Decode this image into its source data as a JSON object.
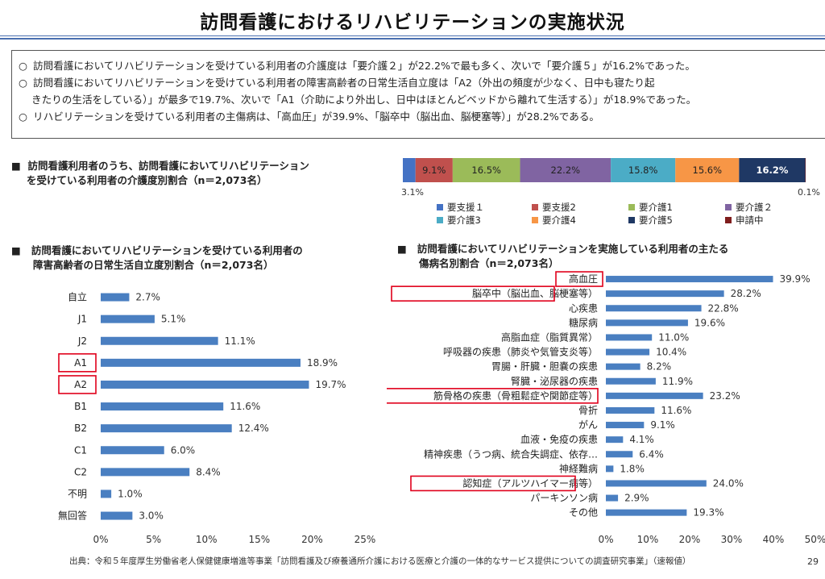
{
  "page": {
    "title": "訪問看護におけるリハビリテーションの実施状況",
    "summary": [
      "訪問看護においてリハビリテーションを受けている利用者の介護度は「要介護２」が22.2%で最も多く、次いで「要介護５」が16.2%であった。",
      "訪問看護においてリハビリテーションを受けている利用者の障害高齢者の日常生活自立度は「A2（外出の頻度が少なく、日中も寝たり起",
      "きたりの生活をしている）」が最多で19.7%、次いで「A1（介助により外出し、日中はほとんどベッドから離れて生活する）」が18.9%であった。",
      "リハビリテーションを受けている利用者の主傷病は、「高血圧」が39.9%、「脳卒中（脳出血、脳梗塞等）」が28.2%である。"
    ],
    "bullet_symbol": "○",
    "section_marker": "■",
    "source": "出典：令和５年度厚生労働省老人保健健康増進等事業「訪問看護及び療養通所介護における医療と介護の一体的なサービス提供についての調査研究事業」（速報値）",
    "page_number": "29"
  },
  "chart_data": [
    {
      "type": "bar",
      "orientation": "horizontal-stacked",
      "title": "訪問看護利用者のうち、訪問看護においてリハビリテーションを受けている利用者の介護度別割合（n＝2,073名）",
      "title_lines": [
        "訪問看護利用者のうち、訪問看護においてリハビリテーション",
        "を受けている利用者の介護度別割合（n＝2,073名）"
      ],
      "series": [
        {
          "name": "要支援１",
          "value": 3.1,
          "label": "3.1%",
          "color": "#4472c4"
        },
        {
          "name": "要支援2",
          "value": 9.1,
          "label": "9.1%",
          "color": "#c0504d"
        },
        {
          "name": "要介護1",
          "value": 16.5,
          "label": "16.5%",
          "color": "#9bbb59"
        },
        {
          "name": "要介護２",
          "value": 22.2,
          "label": "22.2%",
          "color": "#8064a2"
        },
        {
          "name": "要介護3",
          "value": 15.8,
          "label": "15.8%",
          "color": "#4bacc6"
        },
        {
          "name": "要介護4",
          "value": 15.6,
          "label": "15.6%",
          "color": "#f79646"
        },
        {
          "name": "要介護5",
          "value": 16.2,
          "label": "16.2%",
          "color": "#1f3864"
        },
        {
          "name": "申請中",
          "value": 0.1,
          "label": "0.1%",
          "color": "#7f1d1d"
        }
      ],
      "legend_position": "bottom"
    },
    {
      "type": "bar",
      "orientation": "horizontal",
      "title": "訪問看護においてリハビリテーションを受けている利用者の障害高齢者の日常生活自立度別割合（n＝2,073名）",
      "title_lines": [
        "訪問看護においてリハビリテーションを受けている利用者の",
        "障害高齢者の日常生活自立度別割合（n＝2,073名）"
      ],
      "categories": [
        "自立",
        "J1",
        "J2",
        "A1",
        "A2",
        "B1",
        "B2",
        "C1",
        "C2",
        "不明",
        "無回答"
      ],
      "values": [
        2.7,
        5.1,
        11.1,
        18.9,
        19.7,
        11.6,
        12.4,
        6.0,
        8.4,
        1.0,
        3.0
      ],
      "value_labels": [
        "2.7%",
        "5.1%",
        "11.1%",
        "18.9%",
        "19.7%",
        "11.6%",
        "12.4%",
        "6.0%",
        "8.4%",
        "1.0%",
        "3.0%"
      ],
      "highlighted": [
        "A1",
        "A2"
      ],
      "xlim": [
        0,
        25
      ],
      "xticks": [
        "0%",
        "5%",
        "10%",
        "15%",
        "20%",
        "25%"
      ],
      "bar_color": "#4a7fc1",
      "highlight_color": "#e0001b",
      "grid": false
    },
    {
      "type": "bar",
      "orientation": "horizontal",
      "title": "訪問看護においてリハビリテーションを実施している利用者の主たる傷病名別割合（n＝2,073名）",
      "title_lines": [
        "訪問看護においてリハビリテーションを実施している利用者の主たる",
        "傷病名別割合（n＝2,073名）"
      ],
      "categories": [
        "高血圧",
        "脳卒中（脳出血、脳梗塞等）",
        "心疾患",
        "糖尿病",
        "高脂血症（脂質異常）",
        "呼吸器の疾患（肺炎や気管支炎等）",
        "胃腸・肝臓・胆嚢の疾患",
        "腎臓・泌尿器の疾患",
        "筋骨格の疾患（骨粗鬆症や関節症等）",
        "骨折",
        "がん",
        "血液・免疫の疾患",
        "精神疾患（うつ病、統合失調症、依存…",
        "神経難病",
        "認知症（アルツハイマー病等）",
        "パーキンソン病",
        "その他"
      ],
      "values": [
        39.9,
        28.2,
        22.8,
        19.6,
        11.0,
        10.4,
        8.2,
        11.9,
        23.2,
        11.6,
        9.1,
        4.1,
        6.4,
        1.8,
        24.0,
        2.9,
        19.3
      ],
      "value_labels": [
        "39.9%",
        "28.2%",
        "22.8%",
        "19.6%",
        "11.0%",
        "10.4%",
        "8.2%",
        "11.9%",
        "23.2%",
        "11.6%",
        "9.1%",
        "4.1%",
        "6.4%",
        "1.8%",
        "24.0%",
        "2.9%",
        "19.3%"
      ],
      "highlighted": [
        "高血圧",
        "脳卒中（脳出血、脳梗塞等）",
        "筋骨格の疾患（骨粗鬆症や関節症等）",
        "認知症（アルツハイマー病等）"
      ],
      "xlim": [
        0,
        50
      ],
      "xticks": [
        "0%",
        "10%",
        "20%",
        "30%",
        "40%",
        "50%"
      ],
      "bar_color": "#4a7fc1",
      "highlight_color": "#e0001b",
      "grid": false
    }
  ]
}
